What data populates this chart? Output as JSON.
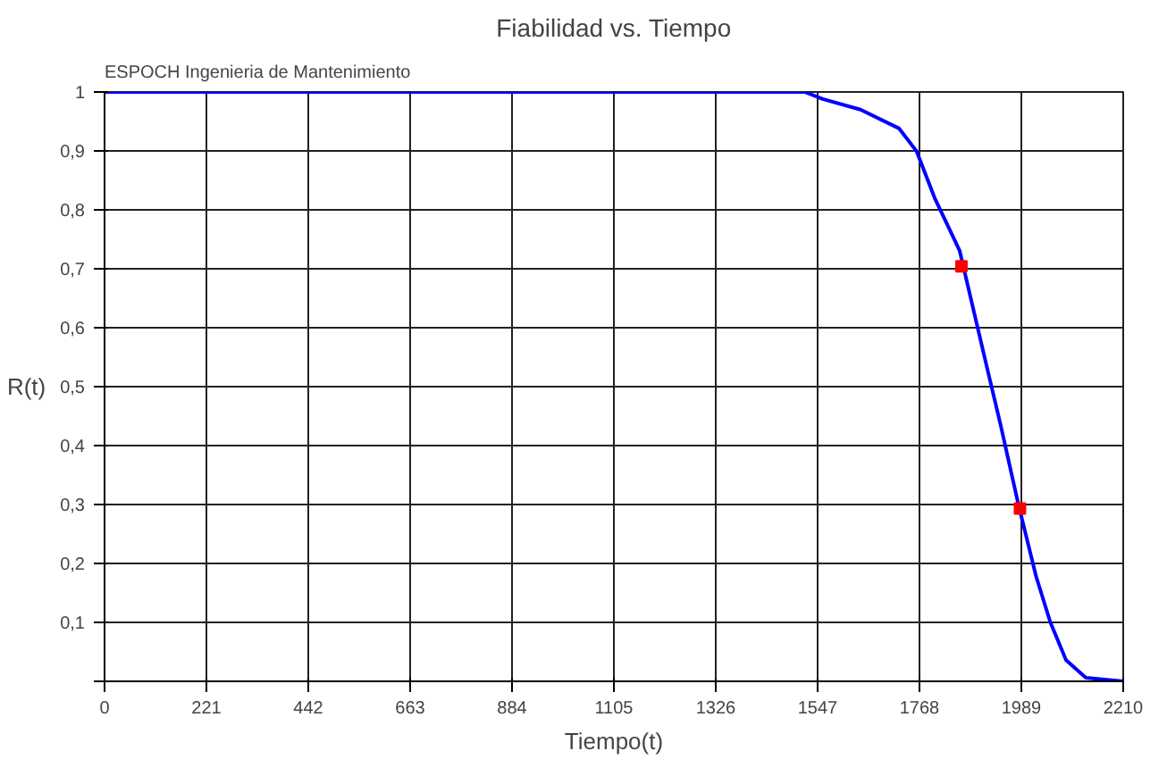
{
  "chart_data": {
    "type": "line",
    "title": "Fiabilidad vs. Tiempo",
    "xlabel": "Tiempo(t)",
    "ylabel": "R(t)",
    "annotations": [
      "ESPOCH Ingenieria de Mantenimiento"
    ],
    "series": [
      {
        "color": "#0000ff",
        "x": [
          0,
          1300,
          1519,
          1558,
          1640,
          1724,
          1762,
          1801,
          1855,
          1917,
          1944,
          1982,
          2021,
          2052,
          2086,
          2129,
          2210
        ],
        "values": [
          1,
          1,
          1,
          0.988,
          0.97,
          0.938,
          0.899,
          0.82,
          0.731,
          0.524,
          0.435,
          0.302,
          0.178,
          0.1,
          0.036,
          0.006,
          0
        ]
      },
      {
        "type": "scatter",
        "color": "#ff0000",
        "marker": "square",
        "x": [
          1859,
          1986
        ],
        "values": [
          0.704,
          0.293
        ]
      }
    ],
    "xlim": [
      0,
      2210
    ],
    "ylim": [
      0,
      1
    ],
    "xticks": [
      0,
      221,
      442,
      663,
      884,
      1105,
      1326,
      1547,
      1768,
      1989,
      2210
    ],
    "yticks": [
      {
        "value": 0,
        "label": null
      },
      {
        "value": 0.1,
        "label": "0,1"
      },
      {
        "value": 0.2,
        "label": "0,2"
      },
      {
        "value": 0.3,
        "label": "0,3"
      },
      {
        "value": 0.4,
        "label": "0,4"
      },
      {
        "value": 0.5,
        "label": "0,5"
      },
      {
        "value": 0.6,
        "label": "0,6"
      },
      {
        "value": 0.7,
        "label": "0,7"
      },
      {
        "value": 0.8,
        "label": "0,8"
      },
      {
        "value": 0.9,
        "label": "0,9"
      },
      {
        "value": 1,
        "label": "1"
      }
    ],
    "grid": true,
    "marker": "none",
    "line_style": "solid"
  }
}
